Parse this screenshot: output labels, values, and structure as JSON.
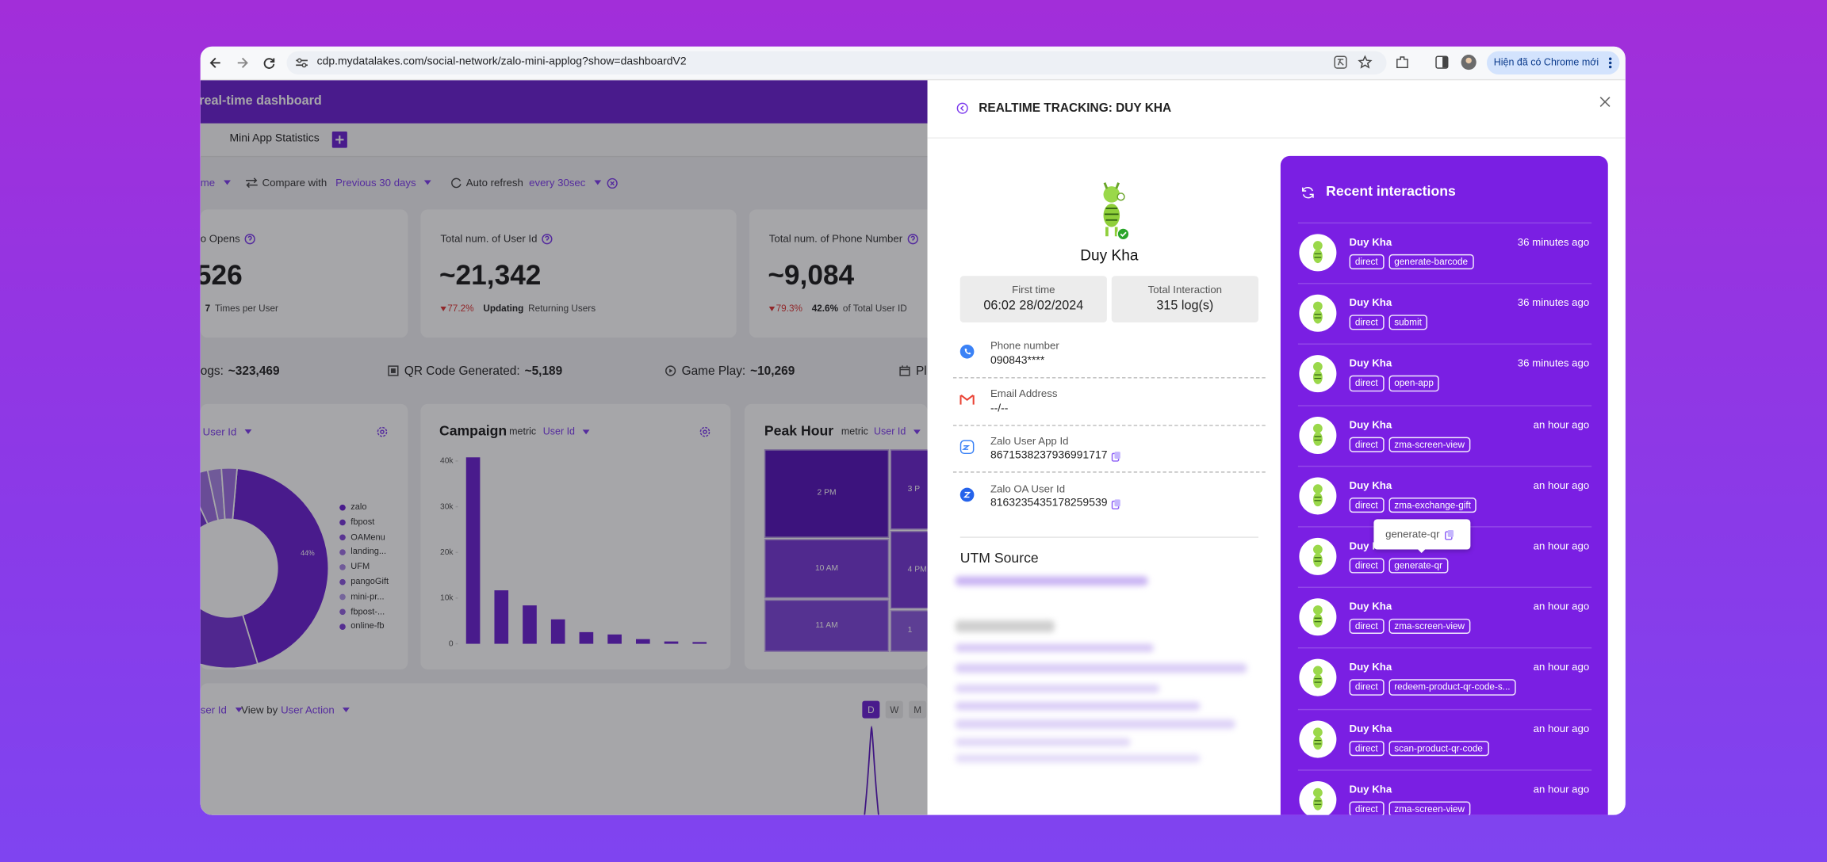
{
  "browser": {
    "url": "cdp.mydatalakes.com/social-network/zalo-mini-applog?show=dashboardV2",
    "update_button": "Hiện đã có Chrome mới"
  },
  "dashboard": {
    "title": "real-time dashboard",
    "tab": "Mini App Statistics",
    "filters": {
      "range": "me",
      "compare_label": "Compare with",
      "compare_value": "Previous 30 days",
      "refresh_label": "Auto refresh",
      "refresh_value": "every 30sec"
    },
    "kpis": [
      {
        "label": "o Opens",
        "value": "526",
        "sub_value": "7",
        "sub_text": "Times per User"
      },
      {
        "label": "Total num. of User Id",
        "value": "~21,342",
        "change": "77.2%",
        "sub_value": "Updating",
        "sub_text": "Returning Users"
      },
      {
        "label": "Total num. of Phone Number",
        "value": "~9,084",
        "change": "79.3%",
        "sub_value": "42.6%",
        "sub_text": "of Total User ID"
      }
    ],
    "stats": [
      {
        "label": "ogs:",
        "value": "~323,469"
      },
      {
        "label": "QR Code Generated:",
        "value": "~5,189"
      },
      {
        "label": "Game Play:",
        "value": "~10,269"
      },
      {
        "label": "Pl"
      }
    ],
    "source_chart": {
      "metric": "User Id",
      "legend": [
        "zalo",
        "fbpost",
        "OAMenu",
        "landing...",
        "UFM",
        "pangoGift",
        "mini-pr...",
        "fbpost-...",
        "online-fb"
      ],
      "slice_label": "44%"
    },
    "campaign": {
      "type": "bar",
      "title": "Campaign",
      "metric_label": "metric",
      "metric": "User Id",
      "color": "#6a1fd0",
      "values": [
        40800,
        11700,
        8400,
        5350,
        2550,
        2040,
        1020,
        510,
        380
      ],
      "ylim": [
        0,
        40000
      ],
      "yticks": [
        0,
        {
          "value": 10000,
          "label": "10k"
        },
        {
          "value": 20000,
          "label": "20k"
        },
        {
          "value": 30000,
          "label": "30k"
        },
        {
          "value": 40000,
          "label": "40k"
        }
      ]
    },
    "peak_hour": {
      "title": "Peak Hour",
      "metric_label": "metric",
      "metric": "User Id",
      "cells": [
        "2 PM",
        "3 P",
        "10 AM",
        "4 PM",
        "11 AM",
        "1"
      ]
    },
    "timeline": {
      "metric": "ser Id",
      "view_label": "View by",
      "view_value": "User Action",
      "periods": [
        "D",
        "W",
        "M"
      ]
    }
  },
  "panel": {
    "title": "REALTIME TRACKING: DUY KHA",
    "profile": {
      "name": "Duy Kha",
      "first_time_label": "First time",
      "first_time": "06:02 28/02/2024",
      "total_label": "Total Interaction",
      "total": "315 log(s)"
    },
    "fields": [
      {
        "label": "Phone number",
        "value": "090843****"
      },
      {
        "label": "Email Address",
        "value": "--/--"
      },
      {
        "label": "Zalo User App Id",
        "value": "8671538237936991717"
      },
      {
        "label": "Zalo OA User Id",
        "value": "8163235435178259539"
      }
    ],
    "utm_title": "UTM Source",
    "recent": {
      "title": "Recent interactions",
      "tooltip": "generate-qr",
      "items": [
        {
          "name": "Duy Kha",
          "time": "36 minutes ago",
          "channel": "direct",
          "action": "generate-barcode"
        },
        {
          "name": "Duy Kha",
          "time": "36 minutes ago",
          "channel": "direct",
          "action": "submit"
        },
        {
          "name": "Duy Kha",
          "time": "36 minutes ago",
          "channel": "direct",
          "action": "open-app"
        },
        {
          "name": "Duy Kha",
          "time": "an hour ago",
          "channel": "direct",
          "action": "zma-screen-view"
        },
        {
          "name": "Duy Kha",
          "time": "an hour ago",
          "channel": "direct",
          "action": "zma-exchange-gift"
        },
        {
          "name": "Duy Kha",
          "time": "an hour ago",
          "channel": "direct",
          "action": "generate-qr"
        },
        {
          "name": "Duy Kha",
          "time": "an hour ago",
          "channel": "direct",
          "action": "zma-screen-view"
        },
        {
          "name": "Duy Kha",
          "time": "an hour ago",
          "channel": "direct",
          "action": "redeem-product-qr-code-s..."
        },
        {
          "name": "Duy Kha",
          "time": "an hour ago",
          "channel": "direct",
          "action": "scan-product-qr-code"
        },
        {
          "name": "Duy Kha",
          "time": "an hour ago",
          "channel": "direct",
          "action": "zma-screen-view"
        }
      ]
    }
  }
}
